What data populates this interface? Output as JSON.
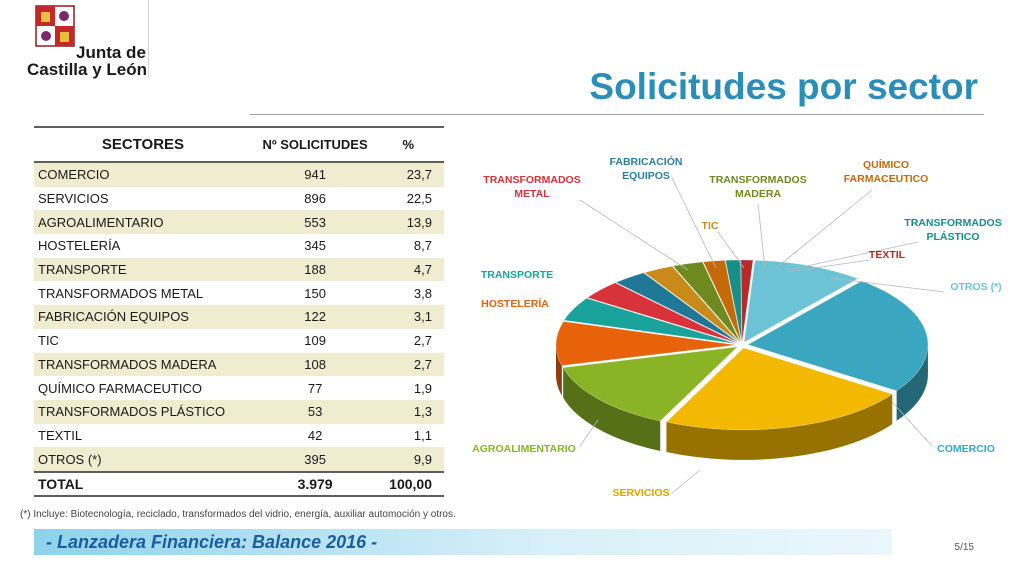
{
  "header": {
    "logo_line1": "Junta de",
    "logo_line2": "Castilla y León",
    "title": "Solicitudes por sector"
  },
  "table": {
    "headers": [
      "SECTORES",
      "Nº SOLICITUDES",
      "%"
    ],
    "rows": [
      [
        "COMERCIO",
        "941",
        "23,7"
      ],
      [
        "SERVICIOS",
        "896",
        "22,5"
      ],
      [
        "AGROALIMENTARIO",
        "553",
        "13,9"
      ],
      [
        "HOSTELERÍA",
        "345",
        "8,7"
      ],
      [
        "TRANSPORTE",
        "188",
        "4,7"
      ],
      [
        "TRANSFORMADOS METAL",
        "150",
        "3,8"
      ],
      [
        "FABRICACIÓN EQUIPOS",
        "122",
        "3,1"
      ],
      [
        "TIC",
        "109",
        "2,7"
      ],
      [
        "TRANSFORMADOS MADERA",
        "108",
        "2,7"
      ],
      [
        "QUÍMICO FARMACEUTICO",
        "77",
        "1,9"
      ],
      [
        "TRANSFORMADOS PLÁSTICO",
        "53",
        "1,3"
      ],
      [
        "TEXTIL",
        "42",
        "1,1"
      ],
      [
        "OTROS (*)",
        "395",
        "9,9"
      ]
    ],
    "total": [
      "TOTAL",
      "3.979",
      "100,00"
    ]
  },
  "chart_data": {
    "type": "pie",
    "slices": [
      {
        "label": "COMERCIO",
        "value": 941,
        "color": "#3aa6bf",
        "label_color": "#3aa6bf"
      },
      {
        "label": "SERVICIOS",
        "value": 896,
        "color": "#f3b800",
        "label_color": "#e0a400"
      },
      {
        "label": "AGROALIMENTARIO",
        "value": 553,
        "color": "#8ab425",
        "label_color": "#8ab425"
      },
      {
        "label": "HOSTELERÍA",
        "value": 345,
        "color": "#e8620c",
        "label_color": "#e8620c"
      },
      {
        "label": "TRANSPORTE",
        "value": 188,
        "color": "#1aa39a",
        "label_color": "#1aa39a"
      },
      {
        "label": "TRANSFORMADOS METAL",
        "value": 150,
        "color": "#d8323a",
        "label_color": "#d8323a"
      },
      {
        "label": "FABRICACIÓN EQUIPOS",
        "value": 122,
        "color": "#1f7895",
        "label_color": "#2a7fa0"
      },
      {
        "label": "TIC",
        "value": 109,
        "color": "#c98a1a",
        "label_color": "#c98a1a"
      },
      {
        "label": "TRANSFORMADOS MADERA",
        "value": 108,
        "color": "#6e8a1e",
        "label_color": "#6e8a1e"
      },
      {
        "label": "QUÍMICO FARMACEUTICO",
        "value": 77,
        "color": "#c46a0a",
        "label_color": "#c46a0a"
      },
      {
        "label": "TRANSFORMADOS PLÁSTICO",
        "value": 53,
        "color": "#178e86",
        "label_color": "#178e86"
      },
      {
        "label": "TEXTIL",
        "value": 42,
        "color": "#b62a2a",
        "label_color": "#b62a2a"
      },
      {
        "label": "OTROS (*)",
        "value": 395,
        "color": "#6cc3d6",
        "label_color": "#6cc3d6"
      }
    ]
  },
  "footer": {
    "note": "(*) Incluye: Biotecnología, reciclado, transformados del vidrio, energía, auxiliar automoción y otros.",
    "banner": "- Lanzadera Financiera: Balance 2016 -",
    "page": "5/15"
  }
}
